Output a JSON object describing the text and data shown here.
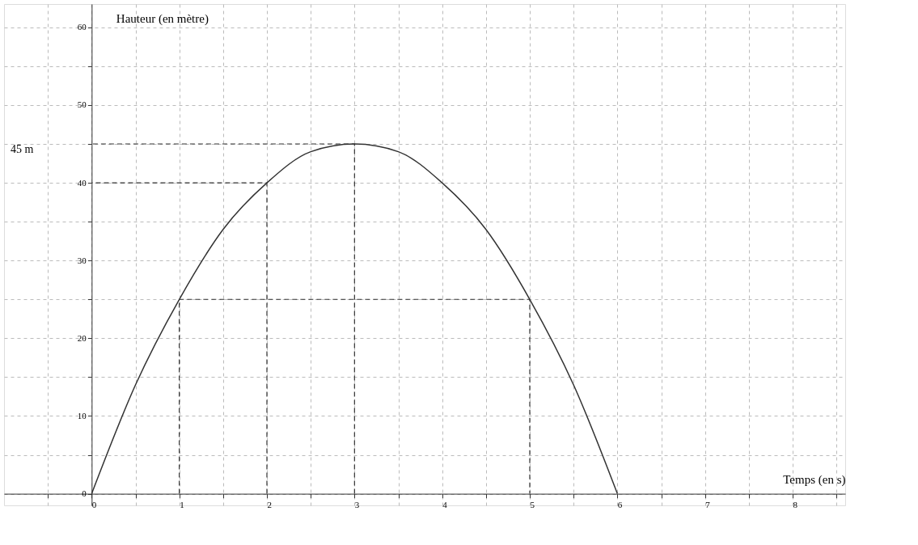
{
  "chart_data": {
    "type": "line",
    "xlabel": "Temps (en s)",
    "ylabel": "Hauteur (en mètre)",
    "xlim": [
      -1,
      8.6
    ],
    "ylim": [
      -1.5,
      63
    ],
    "xticks": [
      {
        "value": -0.5,
        "label": null
      },
      0,
      {
        "value": 0.5,
        "label": null
      },
      1,
      {
        "value": 1.5,
        "label": null
      },
      2,
      {
        "value": 2.5,
        "label": null
      },
      3,
      {
        "value": 3.5,
        "label": null
      },
      4,
      {
        "value": 4.5,
        "label": null
      },
      5,
      {
        "value": 5.5,
        "label": null
      },
      6,
      {
        "value": 6.5,
        "label": null
      },
      7,
      {
        "value": 7.5,
        "label": null
      },
      8,
      {
        "value": 8.5,
        "label": null
      }
    ],
    "yticks": [
      0,
      {
        "value": 5,
        "label": null
      },
      10,
      {
        "value": 15,
        "label": null
      },
      20,
      {
        "value": 25,
        "label": null
      },
      30,
      {
        "value": 35,
        "label": null
      },
      40,
      {
        "value": 45,
        "label": null
      },
      50,
      {
        "value": 55,
        "label": null
      },
      60
    ],
    "grid": true,
    "marker": "none",
    "series": [
      {
        "color": "#333333",
        "line_style": "solid",
        "x": [
          0,
          0.5,
          1,
          1.5,
          2,
          2.5,
          3,
          3.5,
          4,
          4.5,
          5,
          5.5,
          6
        ],
        "values": [
          0,
          14,
          25,
          34,
          40,
          44,
          45,
          44,
          40,
          34,
          25,
          14,
          0
        ]
      },
      {
        "color": "#333333",
        "line_style": "dashed",
        "x": [
          1,
          1,
          5,
          5
        ],
        "values": [
          0,
          25,
          25,
          0
        ]
      },
      {
        "color": "#333333",
        "line_style": "dashed",
        "x": [
          2,
          2,
          0
        ],
        "values": [
          0,
          40,
          40
        ]
      },
      {
        "color": "#333333",
        "line_style": "dashed",
        "x": [
          3,
          3,
          0
        ],
        "values": [
          0,
          45,
          45
        ]
      }
    ],
    "annotations": [
      "45 m"
    ]
  }
}
